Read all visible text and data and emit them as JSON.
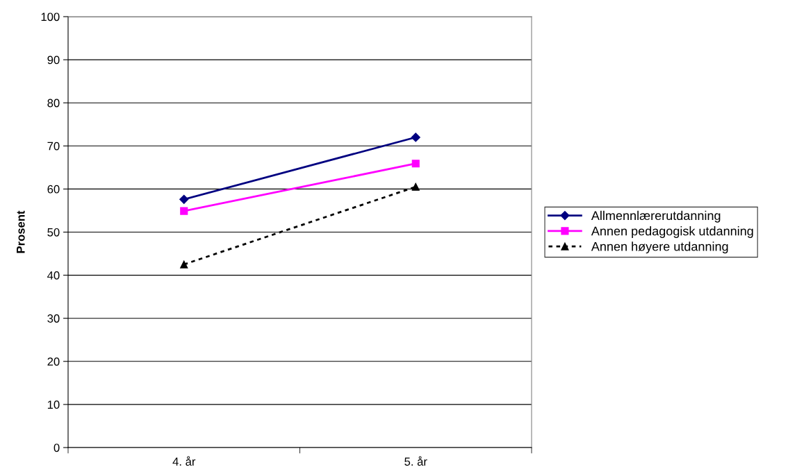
{
  "chart_data": {
    "type": "line",
    "ylabel": "Prosent",
    "categories": [
      "4. år",
      "5. år"
    ],
    "series": [
      {
        "name": "Allmennlærerutdanning",
        "color": "#000080",
        "values": [
          57.6,
          72.0
        ],
        "marker": "diamond",
        "line_style": "solid"
      },
      {
        "name": "Annen pedagogisk utdanning",
        "color": "#ff00ff",
        "values": [
          54.9,
          65.9
        ],
        "marker": "square",
        "line_style": "solid"
      },
      {
        "name": "Annen høyere utdanning",
        "color": "#000000",
        "values": [
          42.5,
          60.5
        ],
        "marker": "triangle",
        "line_style": "dotted"
      }
    ],
    "ylim": [
      0,
      100
    ],
    "yticks": [
      0,
      10,
      20,
      30,
      40,
      50,
      60,
      70,
      80,
      90,
      100
    ],
    "grid": "y",
    "legend": "right"
  }
}
